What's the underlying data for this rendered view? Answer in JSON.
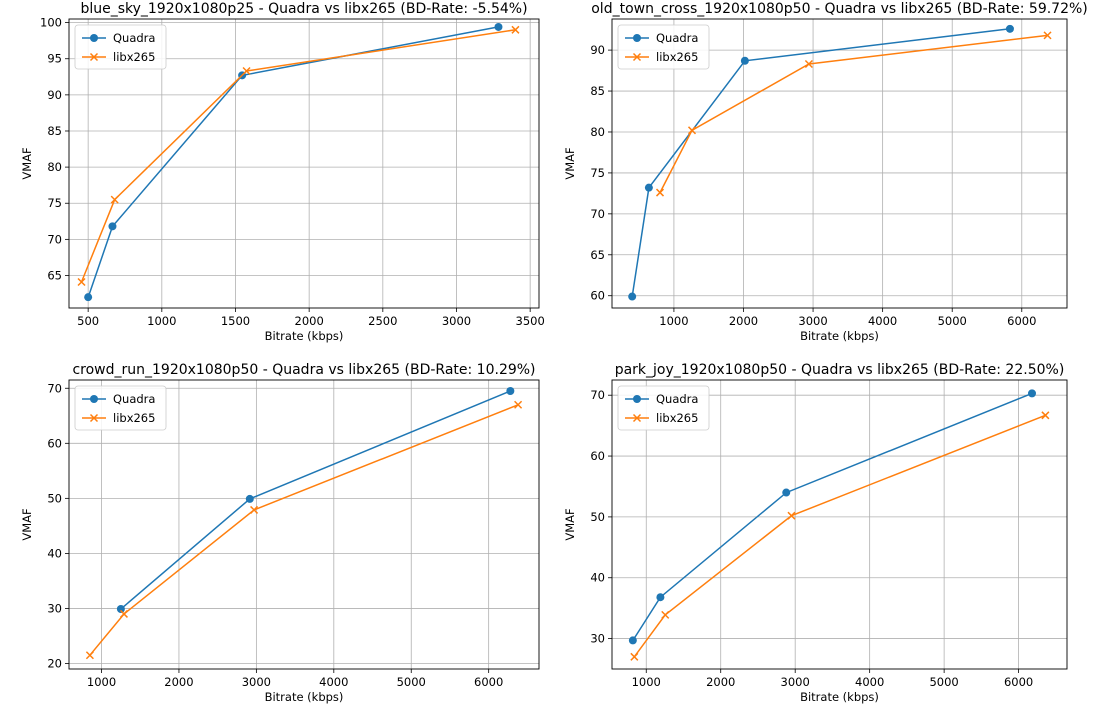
{
  "colors": {
    "quadra": "#1f77b4",
    "libx265": "#ff7f0e",
    "grid": "#b0b0b0"
  },
  "chart_data": [
    {
      "type": "line",
      "title": "blue_sky_1920x1080p25 - Quadra vs libx265 (BD-Rate: -5.54%)",
      "xlabel": "Bitrate (kbps)",
      "ylabel": "VMAF",
      "xlim": [
        370,
        3560
      ],
      "ylim": [
        60.5,
        100.5
      ],
      "xticks": [
        500,
        1000,
        1500,
        2000,
        2500,
        3000,
        3500
      ],
      "yticks": [
        65,
        70,
        75,
        80,
        85,
        90,
        95,
        100
      ],
      "grid": true,
      "legend_position": "upper-left",
      "series": [
        {
          "name": "Quadra",
          "marker": "o",
          "x": [
            500,
            665,
            1545,
            3285
          ],
          "y": [
            62.0,
            71.8,
            92.7,
            99.4
          ]
        },
        {
          "name": "libx265",
          "marker": "x",
          "x": [
            455,
            680,
            1575,
            3400
          ],
          "y": [
            64.1,
            75.5,
            93.3,
            99.0
          ]
        }
      ]
    },
    {
      "type": "line",
      "title": "old_town_cross_1920x1080p50 - Quadra vs libx265 (BD-Rate: 59.72%)",
      "xlabel": "Bitrate (kbps)",
      "ylabel": "VMAF",
      "xlim": [
        110,
        6650
      ],
      "ylim": [
        58.5,
        93.8
      ],
      "xticks": [
        1000,
        2000,
        3000,
        4000,
        5000,
        6000
      ],
      "yticks": [
        60,
        65,
        70,
        75,
        80,
        85,
        90
      ],
      "grid": true,
      "legend_position": "upper-left",
      "series": [
        {
          "name": "Quadra",
          "marker": "o",
          "x": [
            400,
            640,
            2020,
            5830
          ],
          "y": [
            59.9,
            73.2,
            88.7,
            92.6
          ]
        },
        {
          "name": "libx265",
          "marker": "x",
          "x": [
            800,
            1260,
            2940,
            6370
          ],
          "y": [
            72.6,
            80.2,
            88.3,
            91.8
          ]
        }
      ]
    },
    {
      "type": "line",
      "title": "crowd_run_1920x1080p50 - Quadra vs libx265 (BD-Rate: 10.29%)",
      "xlabel": "Bitrate (kbps)",
      "ylabel": "VMAF",
      "xlim": [
        580,
        6650
      ],
      "ylim": [
        19.0,
        71.5
      ],
      "xticks": [
        1000,
        2000,
        3000,
        4000,
        5000,
        6000
      ],
      "yticks": [
        20,
        30,
        40,
        50,
        60,
        70
      ],
      "grid": true,
      "legend_position": "upper-left",
      "series": [
        {
          "name": "Quadra",
          "marker": "o",
          "x": [
            1250,
            2915,
            6280
          ],
          "y": [
            29.9,
            49.9,
            69.5
          ]
        },
        {
          "name": "libx265",
          "marker": "x",
          "x": [
            850,
            1290,
            2970,
            6380
          ],
          "y": [
            21.5,
            29.0,
            47.9,
            67.0
          ]
        }
      ]
    },
    {
      "type": "line",
      "title": "park_joy_1920x1080p50 - Quadra vs libx265 (BD-Rate: 22.50%)",
      "xlabel": "Bitrate (kbps)",
      "ylabel": "VMAF",
      "xlim": [
        540,
        6650
      ],
      "ylim": [
        25.0,
        72.5
      ],
      "xticks": [
        1000,
        2000,
        3000,
        4000,
        5000,
        6000
      ],
      "yticks": [
        30,
        40,
        50,
        60,
        70
      ],
      "grid": true,
      "legend_position": "upper-left",
      "series": [
        {
          "name": "Quadra",
          "marker": "o",
          "x": [
            820,
            1190,
            2880,
            6180
          ],
          "y": [
            29.7,
            36.8,
            54.0,
            70.3
          ]
        },
        {
          "name": "libx265",
          "marker": "x",
          "x": [
            840,
            1255,
            2950,
            6360
          ],
          "y": [
            27.0,
            33.9,
            50.2,
            66.7
          ]
        }
      ]
    }
  ]
}
